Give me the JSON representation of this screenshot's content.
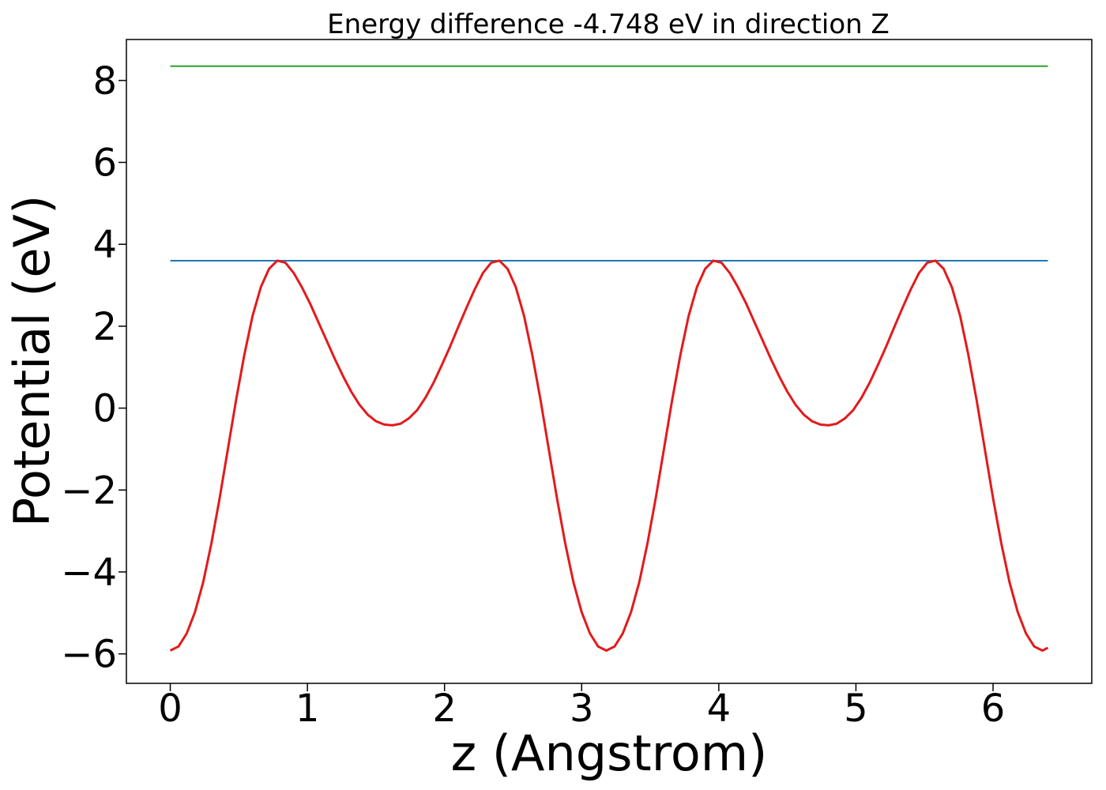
{
  "chart_data": {
    "type": "line",
    "title": "Energy difference -4.748 eV in direction Z",
    "xlabel": "z (Angstrom)",
    "ylabel": "Potential (eV)",
    "xlim": [
      -0.32,
      6.72
    ],
    "ylim": [
      -6.72,
      9.0
    ],
    "x_ticks": [
      0,
      1,
      2,
      3,
      4,
      5,
      6
    ],
    "y_ticks": [
      -6,
      -4,
      -2,
      0,
      2,
      4,
      6,
      8
    ],
    "x_tick_labels": [
      "0",
      "1",
      "2",
      "3",
      "4",
      "5",
      "6"
    ],
    "y_tick_labels": [
      "−6",
      "−4",
      "−2",
      "0",
      "2",
      "4",
      "6",
      "8"
    ],
    "grid": false,
    "legend": "none",
    "series": [
      {
        "color": "#2ca02c",
        "x": [
          0,
          6.4
        ],
        "y": [
          8.35,
          8.35
        ]
      },
      {
        "color": "#1f77b4",
        "x": [
          0,
          6.4
        ],
        "y": [
          3.6,
          3.6
        ]
      },
      {
        "color": "#e31a1c",
        "x": [
          0,
          0.06,
          0.12,
          0.18,
          0.24,
          0.3,
          0.36,
          0.42,
          0.48,
          0.54,
          0.6,
          0.66,
          0.72,
          0.78,
          0.84,
          0.9,
          0.96,
          1.02,
          1.08,
          1.14,
          1.2,
          1.26,
          1.32,
          1.38,
          1.44,
          1.5,
          1.56,
          1.62,
          1.68,
          1.74,
          1.8,
          1.86,
          1.92,
          1.98,
          2.04,
          2.1,
          2.16,
          2.22,
          2.28,
          2.34,
          2.4,
          2.46,
          2.52,
          2.58,
          2.64,
          2.7,
          2.76,
          2.82,
          2.88,
          2.94,
          3.0,
          3.06,
          3.12,
          3.18,
          3.24,
          3.3,
          3.36,
          3.42,
          3.48,
          3.54,
          3.6,
          3.66,
          3.72,
          3.78,
          3.84,
          3.9,
          3.96,
          4.02,
          4.08,
          4.14,
          4.2,
          4.26,
          4.32,
          4.38,
          4.44,
          4.5,
          4.56,
          4.62,
          4.68,
          4.74,
          4.8,
          4.86,
          4.92,
          4.98,
          5.04,
          5.1,
          5.16,
          5.22,
          5.28,
          5.34,
          5.4,
          5.46,
          5.52,
          5.58,
          5.64,
          5.7,
          5.76,
          5.82,
          5.88,
          5.94,
          6.0,
          6.06,
          6.12,
          6.18,
          6.24,
          6.3,
          6.36,
          6.4
        ],
        "y": [
          -5.92,
          -5.82,
          -5.5,
          -4.98,
          -4.25,
          -3.3,
          -2.2,
          -1.0,
          0.2,
          1.3,
          2.25,
          2.95,
          3.4,
          3.6,
          3.55,
          3.3,
          2.95,
          2.55,
          2.1,
          1.65,
          1.2,
          0.78,
          0.4,
          0.08,
          -0.16,
          -0.32,
          -0.4,
          -0.42,
          -0.38,
          -0.25,
          -0.05,
          0.25,
          0.62,
          1.05,
          1.5,
          1.98,
          2.45,
          2.9,
          3.3,
          3.55,
          3.6,
          3.4,
          2.95,
          2.25,
          1.3,
          0.2,
          -1.0,
          -2.2,
          -3.3,
          -4.25,
          -4.98,
          -5.5,
          -5.82,
          -5.92,
          -5.82,
          -5.5,
          -4.98,
          -4.25,
          -3.3,
          -2.2,
          -1.0,
          0.2,
          1.3,
          2.25,
          2.95,
          3.4,
          3.6,
          3.55,
          3.3,
          2.95,
          2.55,
          2.1,
          1.65,
          1.2,
          0.78,
          0.4,
          0.08,
          -0.16,
          -0.32,
          -0.4,
          -0.42,
          -0.38,
          -0.25,
          -0.05,
          0.25,
          0.62,
          1.05,
          1.5,
          1.98,
          2.45,
          2.9,
          3.3,
          3.55,
          3.6,
          3.4,
          2.95,
          2.25,
          1.3,
          0.2,
          -1.0,
          -2.2,
          -3.3,
          -4.25,
          -4.98,
          -5.5,
          -5.82,
          -5.92,
          -5.85
        ]
      }
    ]
  }
}
